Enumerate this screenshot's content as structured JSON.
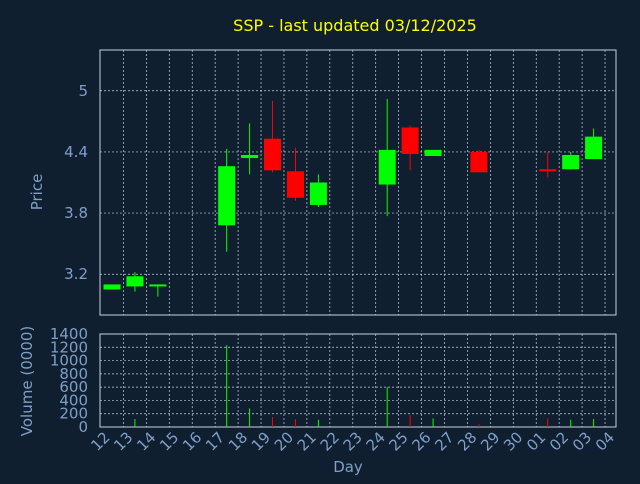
{
  "chart_data": [
    {
      "type": "candlestick",
      "title": "SSP - last updated 03/12/2025",
      "ylabel": "Price",
      "yticks": [
        "5",
        "4.4",
        "3.8",
        "3.2"
      ],
      "ylim": [
        2.8,
        5.4
      ],
      "grid": true,
      "days": [
        "12",
        "13",
        "14",
        "15",
        "16",
        "17",
        "18",
        "19",
        "20",
        "21",
        "22",
        "23",
        "24",
        "25",
        "26",
        "27",
        "28",
        "29",
        "30",
        "01",
        "02",
        "03",
        "04"
      ],
      "candles": [
        {
          "day": "12",
          "open": 3.05,
          "close": 3.1,
          "high": 3.1,
          "low": 3.05,
          "color": "green"
        },
        {
          "day": "13",
          "open": 3.08,
          "close": 3.18,
          "high": 3.22,
          "low": 3.03,
          "color": "green"
        },
        {
          "day": "14",
          "open": 3.08,
          "close": 3.1,
          "high": 3.1,
          "low": 2.98,
          "color": "green"
        },
        {
          "day": "17",
          "open": 3.68,
          "close": 4.26,
          "high": 4.43,
          "low": 3.42,
          "color": "green"
        },
        {
          "day": "18",
          "open": 4.34,
          "close": 4.37,
          "high": 4.68,
          "low": 4.18,
          "color": "green"
        },
        {
          "day": "19",
          "open": 4.53,
          "close": 4.22,
          "high": 4.9,
          "low": 4.2,
          "color": "red"
        },
        {
          "day": "20",
          "open": 4.21,
          "close": 3.95,
          "high": 4.44,
          "low": 3.92,
          "color": "red"
        },
        {
          "day": "21",
          "open": 3.88,
          "close": 4.1,
          "high": 4.18,
          "low": 3.86,
          "color": "green"
        },
        {
          "day": "24",
          "open": 4.08,
          "close": 4.42,
          "high": 4.92,
          "low": 3.77,
          "color": "green"
        },
        {
          "day": "25",
          "open": 4.64,
          "close": 4.38,
          "high": 4.66,
          "low": 4.22,
          "color": "red"
        },
        {
          "day": "26",
          "open": 4.36,
          "close": 4.42,
          "high": 4.42,
          "low": 4.36,
          "color": "green"
        },
        {
          "day": "28",
          "open": 4.4,
          "close": 4.2,
          "high": 4.42,
          "low": 4.2,
          "color": "red"
        },
        {
          "day": "01",
          "open": 4.23,
          "close": 4.22,
          "high": 4.4,
          "low": 4.15,
          "color": "red"
        },
        {
          "day": "02",
          "open": 4.23,
          "close": 4.37,
          "high": 4.4,
          "low": 4.23,
          "color": "green"
        },
        {
          "day": "03",
          "open": 4.33,
          "close": 4.55,
          "high": 4.63,
          "low": 4.33,
          "color": "green"
        }
      ]
    },
    {
      "type": "bar",
      "ylabel": "Volume (0000)",
      "xlabel": "Day",
      "ylim": [
        0,
        1400
      ],
      "yticks": [
        "1400",
        "1200",
        "1000",
        "800",
        "600",
        "400",
        "200",
        "0"
      ],
      "grid": true,
      "categories": [
        "12",
        "13",
        "14",
        "15",
        "16",
        "17",
        "18",
        "19",
        "20",
        "21",
        "22",
        "23",
        "24",
        "25",
        "26",
        "27",
        "28",
        "29",
        "30",
        "01",
        "02",
        "03",
        "04"
      ],
      "values": [
        0,
        120,
        0,
        0,
        0,
        1230,
        280,
        150,
        120,
        110,
        0,
        0,
        600,
        180,
        130,
        0,
        40,
        0,
        0,
        130,
        110,
        120,
        0
      ],
      "colors": [
        "green",
        "green",
        "green",
        "green",
        "green",
        "green",
        "green",
        "red",
        "red",
        "green",
        "green",
        "green",
        "green",
        "red",
        "green",
        "green",
        "red",
        "green",
        "green",
        "red",
        "green",
        "green",
        "green"
      ]
    }
  ],
  "colors": {
    "background": "#0f1f30",
    "title": "#ffff00",
    "axis_text": "#7f9fc8",
    "grid": "#c8d2dc",
    "up": "#00ff00",
    "down": "#ff0000"
  }
}
